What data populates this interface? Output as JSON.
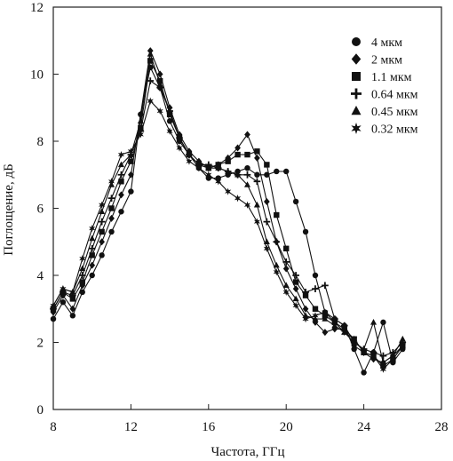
{
  "chart_data": {
    "type": "line",
    "xlabel": "Частота, ГГц",
    "ylabel": "Поглощение, дБ",
    "xlim": [
      8,
      28
    ],
    "ylim": [
      0,
      12
    ],
    "xticks": [
      8,
      12,
      16,
      20,
      24,
      28
    ],
    "yticks": [
      0,
      2,
      4,
      6,
      8,
      10,
      12
    ],
    "grid": false,
    "legend_position": "top-right",
    "series": [
      {
        "name": "4 мкм",
        "marker": "circle",
        "x": [
          8,
          8.5,
          9,
          9.5,
          10,
          10.5,
          11,
          11.5,
          12,
          12.5,
          13,
          13.5,
          14,
          14.5,
          15,
          15.5,
          16,
          16.5,
          17,
          17.5,
          18,
          18.5,
          19,
          19.5,
          20,
          20.5,
          21,
          21.5,
          22,
          22.5,
          23,
          23.5,
          24,
          24.5,
          25,
          25.5,
          26
        ],
        "y": [
          2.7,
          3.2,
          2.8,
          3.5,
          4.0,
          4.6,
          5.3,
          5.9,
          6.5,
          8.8,
          10.2,
          9.6,
          8.6,
          8.0,
          7.6,
          7.2,
          6.9,
          6.9,
          7.0,
          7.1,
          7.2,
          7.0,
          7.0,
          7.1,
          7.1,
          6.2,
          5.3,
          4.0,
          2.9,
          2.7,
          2.5,
          1.8,
          1.1,
          1.7,
          2.6,
          1.4,
          1.8
        ]
      },
      {
        "name": "2 мкм",
        "marker": "diamond",
        "x": [
          8,
          8.5,
          9,
          9.5,
          10,
          10.5,
          11,
          11.5,
          12,
          12.5,
          13,
          13.5,
          14,
          14.5,
          15,
          15.5,
          16,
          16.5,
          17,
          17.5,
          18,
          18.5,
          19,
          19.5,
          20,
          20.5,
          21,
          21.5,
          22,
          22.5,
          23,
          23.5,
          24,
          24.5,
          25,
          25.5,
          26
        ],
        "y": [
          2.9,
          3.4,
          3.0,
          3.7,
          4.3,
          5.0,
          5.7,
          6.4,
          7.0,
          8.8,
          10.7,
          10.0,
          9.0,
          8.2,
          7.7,
          7.4,
          7.2,
          7.3,
          7.5,
          7.8,
          8.2,
          7.5,
          6.2,
          5.0,
          4.2,
          3.6,
          3.0,
          2.6,
          2.3,
          2.4,
          2.4,
          1.9,
          1.7,
          1.5,
          1.4,
          1.6,
          1.9
        ]
      },
      {
        "name": "1.1 мкм",
        "marker": "square",
        "x": [
          8,
          8.5,
          9,
          9.5,
          10,
          10.5,
          11,
          11.5,
          12,
          12.5,
          13,
          13.5,
          14,
          14.5,
          15,
          15.5,
          16,
          16.5,
          17,
          17.5,
          18,
          18.5,
          19,
          19.5,
          20,
          20.5,
          21,
          21.5,
          22,
          22.5,
          23,
          23.5,
          24,
          24.5,
          25,
          25.5,
          26
        ],
        "y": [
          3.0,
          3.5,
          3.3,
          3.8,
          4.6,
          5.3,
          6.0,
          6.8,
          7.4,
          8.4,
          10.4,
          9.8,
          8.8,
          8.1,
          7.6,
          7.3,
          7.2,
          7.3,
          7.4,
          7.6,
          7.6,
          7.7,
          7.3,
          5.8,
          4.8,
          3.8,
          3.4,
          3.0,
          2.8,
          2.6,
          2.4,
          2.1,
          1.7,
          1.6,
          1.3,
          1.5,
          1.9
        ]
      },
      {
        "name": "0.64 мкм",
        "marker": "plus",
        "x": [
          8,
          8.5,
          9,
          9.5,
          10,
          10.5,
          11,
          11.5,
          12,
          12.5,
          13,
          13.5,
          14,
          14.5,
          15,
          15.5,
          16,
          16.5,
          17,
          17.5,
          18,
          18.5,
          19,
          19.5,
          20,
          20.5,
          21,
          21.5,
          22,
          22.5,
          23,
          23.5,
          24,
          24.5,
          25,
          25.5,
          26
        ],
        "y": [
          3.0,
          3.5,
          3.4,
          4.0,
          4.8,
          5.6,
          6.3,
          7.0,
          7.6,
          8.3,
          9.8,
          9.6,
          8.9,
          8.1,
          7.6,
          7.3,
          7.3,
          7.2,
          7.1,
          7.0,
          7.0,
          6.8,
          5.6,
          5.0,
          4.4,
          4.0,
          3.5,
          3.6,
          3.7,
          2.7,
          2.5,
          2.0,
          1.8,
          1.7,
          1.6,
          1.7,
          2.0
        ]
      },
      {
        "name": "0.45 мкм",
        "marker": "triangle",
        "x": [
          8,
          8.5,
          9,
          9.5,
          10,
          10.5,
          11,
          11.5,
          12,
          12.5,
          13,
          13.5,
          14,
          14.5,
          15,
          15.5,
          16,
          16.5,
          17,
          17.5,
          18,
          18.5,
          19,
          19.5,
          20,
          20.5,
          21,
          21.5,
          22,
          22.5,
          23,
          23.5,
          24,
          24.5,
          25,
          25.5,
          26
        ],
        "y": [
          3.1,
          3.6,
          3.5,
          4.2,
          5.1,
          5.9,
          6.7,
          7.3,
          7.6,
          8.6,
          10.6,
          9.7,
          8.9,
          8.1,
          7.6,
          7.3,
          7.2,
          7.2,
          7.1,
          7.0,
          6.7,
          6.1,
          5.0,
          4.3,
          3.7,
          3.3,
          2.8,
          2.7,
          2.7,
          2.5,
          2.3,
          2.0,
          1.8,
          2.6,
          1.4,
          1.6,
          2.1
        ]
      },
      {
        "name": "0.32 мкм",
        "marker": "star",
        "x": [
          8,
          8.5,
          9,
          9.5,
          10,
          10.5,
          11,
          11.5,
          12,
          12.5,
          13,
          13.5,
          14,
          14.5,
          15,
          15.5,
          16,
          16.5,
          17,
          17.5,
          18,
          18.5,
          19,
          19.5,
          20,
          20.5,
          21,
          21.5,
          22,
          22.5,
          23,
          23.5,
          24,
          24.5,
          25,
          25.5,
          26
        ],
        "y": [
          3.1,
          3.6,
          3.5,
          4.5,
          5.4,
          6.1,
          6.8,
          7.6,
          7.7,
          8.2,
          9.2,
          8.9,
          8.3,
          7.8,
          7.4,
          7.2,
          7.0,
          6.8,
          6.5,
          6.3,
          6.1,
          5.6,
          4.8,
          4.1,
          3.5,
          3.1,
          2.7,
          2.8,
          2.9,
          2.6,
          2.3,
          2.1,
          1.7,
          1.6,
          1.2,
          1.5,
          1.9
        ]
      }
    ]
  }
}
